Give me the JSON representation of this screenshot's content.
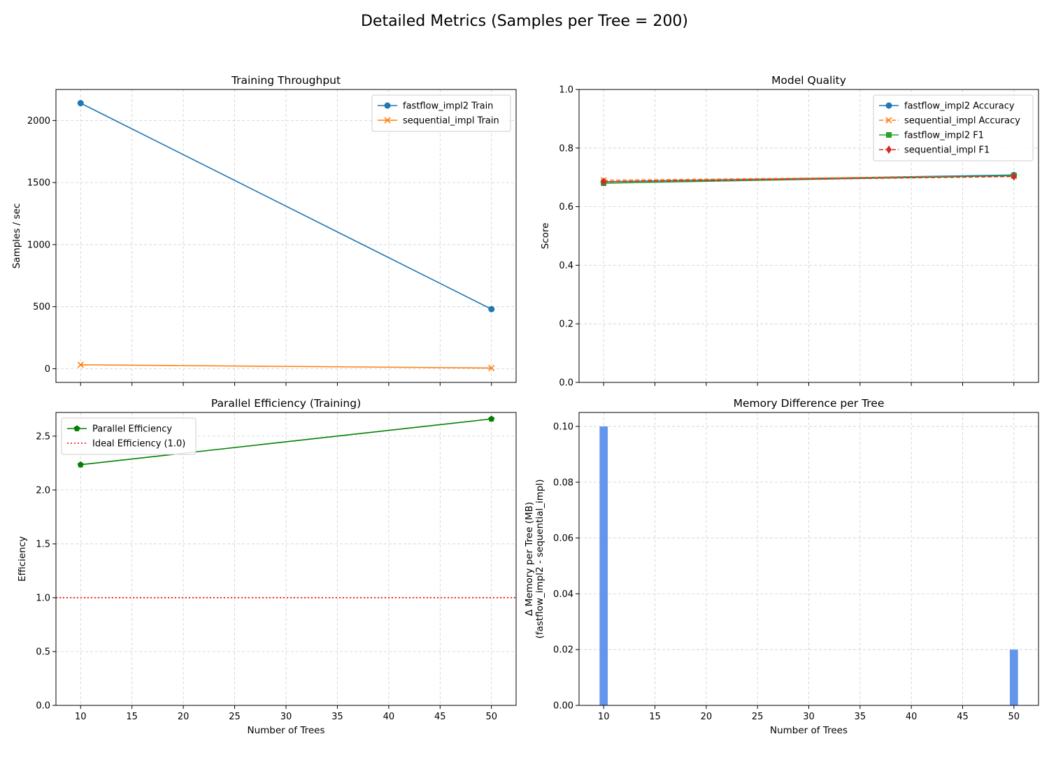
{
  "figure": {
    "suptitle": "Detailed Metrics (Samples per Tree = 200)"
  },
  "chart_data": [
    {
      "id": "throughput",
      "type": "line",
      "title": "Training Throughput",
      "xlabel": "",
      "ylabel": "Samples / sec",
      "x": [
        10,
        50
      ],
      "xlim": [
        7.6,
        52.4
      ],
      "ylim": [
        -110,
        2250
      ],
      "xticks": [
        10,
        15,
        20,
        25,
        30,
        35,
        40,
        45,
        50
      ],
      "xticklabels_shown": false,
      "yticks": [
        0,
        500,
        1000,
        1500,
        2000
      ],
      "grid": true,
      "legend": "upper right",
      "series": [
        {
          "name": "fastflow_impl2 Train",
          "values": [
            2140,
            480
          ],
          "color": "#1f77b4",
          "marker": "circle",
          "dash": "solid"
        },
        {
          "name": "sequential_impl Train",
          "values": [
            32,
            6
          ],
          "color": "#ff7f0e",
          "marker": "x",
          "dash": "solid"
        }
      ]
    },
    {
      "id": "quality",
      "type": "line",
      "title": "Model Quality",
      "xlabel": "",
      "ylabel": "Score",
      "x": [
        10,
        50
      ],
      "xlim": [
        7.6,
        52.4
      ],
      "ylim": [
        0,
        1
      ],
      "xticks": [
        10,
        15,
        20,
        25,
        30,
        35,
        40,
        45,
        50
      ],
      "xticklabels_shown": false,
      "yticks": [
        0.0,
        0.2,
        0.4,
        0.6,
        0.8,
        1.0
      ],
      "grid": true,
      "legend": "upper right",
      "series": [
        {
          "name": "fastflow_impl2 Accuracy",
          "values": [
            0.685,
            0.708
          ],
          "color": "#1f77b4",
          "marker": "circle",
          "dash": "solid"
        },
        {
          "name": "sequential_impl Accuracy",
          "values": [
            0.69,
            0.705
          ],
          "color": "#ff7f0e",
          "marker": "x",
          "dash": "dashed"
        },
        {
          "name": "fastflow_impl2 F1",
          "values": [
            0.68,
            0.706
          ],
          "color": "#2ca02c",
          "marker": "square",
          "dash": "solid"
        },
        {
          "name": "sequential_impl F1",
          "values": [
            0.685,
            0.703
          ],
          "color": "#d62728",
          "marker": "diamond",
          "dash": "dashed"
        }
      ]
    },
    {
      "id": "efficiency",
      "type": "line",
      "title": "Parallel Efficiency (Training)",
      "xlabel": "Number of Trees",
      "ylabel": "Efficiency",
      "x": [
        10,
        50
      ],
      "xlim": [
        7.6,
        52.4
      ],
      "ylim": [
        0,
        2.72
      ],
      "xticks": [
        10,
        15,
        20,
        25,
        30,
        35,
        40,
        45,
        50
      ],
      "xticklabels_shown": true,
      "yticks": [
        0.0,
        0.5,
        1.0,
        1.5,
        2.0,
        2.5
      ],
      "grid": true,
      "legend": "upper left",
      "series": [
        {
          "name": "Parallel Efficiency",
          "values": [
            2.235,
            2.66
          ],
          "color": "#008000",
          "marker": "pentagon",
          "dash": "solid"
        }
      ],
      "hlines": [
        {
          "name": "Ideal Efficiency (1.0)",
          "y": 1.0,
          "color": "#ff0000",
          "dash": "dotted"
        }
      ]
    },
    {
      "id": "memory",
      "type": "bar",
      "title": "Memory Difference per Tree",
      "xlabel": "Number of Trees",
      "ylabel": "Δ Memory per Tree (MB)\n(fastflow_impl2 - sequential_impl)",
      "categories": [
        10,
        50
      ],
      "values": [
        0.1,
        0.02
      ],
      "bar_width_data": 0.8,
      "color": "#6495ed",
      "xlim": [
        7.6,
        52.4
      ],
      "ylim": [
        0,
        0.105
      ],
      "xticks": [
        10,
        15,
        20,
        25,
        30,
        35,
        40,
        45,
        50
      ],
      "xticklabels_shown": true,
      "yticks": [
        0.0,
        0.02,
        0.04,
        0.06,
        0.08,
        0.1
      ],
      "grid": true
    }
  ]
}
